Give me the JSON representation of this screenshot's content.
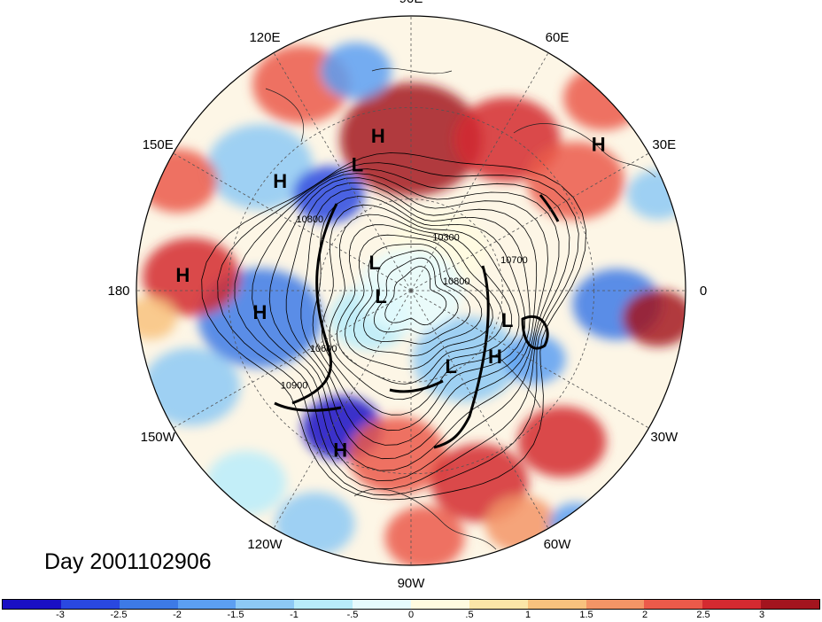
{
  "title": "Day 2001102906",
  "longitude_labels": [
    {
      "text": "90E",
      "lon": 90
    },
    {
      "text": "60E",
      "lon": 60
    },
    {
      "text": "30E",
      "lon": 30
    },
    {
      "text": "0",
      "lon": 0
    },
    {
      "text": "30W",
      "lon": -30
    },
    {
      "text": "60W",
      "lon": -60
    },
    {
      "text": "90W",
      "lon": -90
    },
    {
      "text": "120W",
      "lon": -120
    },
    {
      "text": "150W",
      "lon": -150
    },
    {
      "text": "180",
      "lon": 180
    },
    {
      "text": "150E",
      "lon": 150
    },
    {
      "text": "120E",
      "lon": 120
    }
  ],
  "pressure_centers": [
    {
      "type": "H",
      "lon": 102,
      "lat": 38
    },
    {
      "type": "L",
      "lon": 113,
      "lat": 45
    },
    {
      "type": "H",
      "lon": 140,
      "lat": 34
    },
    {
      "type": "H",
      "lon": 38,
      "lat": 12
    },
    {
      "type": "L",
      "lon": 142,
      "lat": 75
    },
    {
      "type": "L",
      "lon": -170,
      "lat": 80
    },
    {
      "type": "H",
      "lon": 176,
      "lat": 15
    },
    {
      "type": "H",
      "lon": -172,
      "lat": 40
    },
    {
      "type": "L",
      "lon": -17,
      "lat": 57
    },
    {
      "type": "L",
      "lon": -62,
      "lat": 62
    },
    {
      "type": "H",
      "lon": -38,
      "lat": 55
    },
    {
      "type": "H",
      "lon": -114,
      "lat": 33
    }
  ],
  "contour_labels": [
    {
      "text": "10300",
      "lon": 55,
      "lat": 70
    },
    {
      "text": "10700",
      "lon": 15,
      "lat": 55
    },
    {
      "text": "10800",
      "lon": 146,
      "lat": 50
    },
    {
      "text": "10600",
      "lon": -145,
      "lat": 55
    },
    {
      "text": "10900",
      "lon": -140,
      "lat": 40
    },
    {
      "text": "10800",
      "lon": 8,
      "lat": 75
    }
  ],
  "colorbar": {
    "colors": [
      "#1a0fc4",
      "#2a48e0",
      "#3d7ae6",
      "#5c9ff2",
      "#8dc9f5",
      "#b8ecfa",
      "#e6fbfd",
      "#fffbe0",
      "#fbe6a8",
      "#f8c27e",
      "#f39566",
      "#eb5a4a",
      "#d42a30",
      "#a3141e"
    ],
    "tick_labels": [
      "-3",
      "-2.5",
      "-2",
      "-1.5",
      "-1",
      "-.5",
      "0",
      ".5",
      "1",
      "1.5",
      "2",
      "2.5",
      "3"
    ]
  }
}
